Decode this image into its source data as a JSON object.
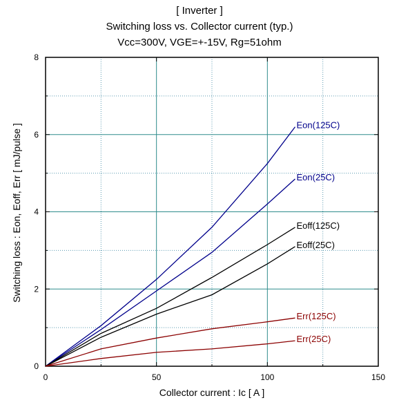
{
  "chart_data": {
    "type": "line",
    "title": "[ Inverter ]",
    "subtitle_lines": [
      "Switching loss  vs.  Collector current  (typ.)",
      "Vcc=300V, VGE=+-15V, Rg=51ohm"
    ],
    "xlabel": "Collector current  :  Ic  [ A ]",
    "ylabel": "Switching loss  :  Eon, Eoff, Err  [ mJ/pulse ]",
    "xlim": [
      0,
      150
    ],
    "ylim": [
      0,
      8
    ],
    "xticks": [
      0,
      50,
      100,
      150
    ],
    "yticks": [
      0,
      2,
      4,
      6,
      8
    ],
    "grid": true,
    "series": [
      {
        "name": "Eon(125C)",
        "color": "#00008b",
        "x": [
          0,
          25,
          50,
          75,
          100,
          112.5
        ],
        "y": [
          0,
          1.05,
          2.25,
          3.6,
          5.25,
          6.2
        ]
      },
      {
        "name": "Eon(25C)",
        "color": "#00008b",
        "x": [
          0,
          25,
          50,
          75,
          100,
          112.5
        ],
        "y": [
          0,
          0.95,
          1.95,
          2.95,
          4.2,
          4.85
        ]
      },
      {
        "name": "Eoff(125C)",
        "color": "#000000",
        "x": [
          0,
          25,
          50,
          75,
          100,
          112.5
        ],
        "y": [
          0,
          0.85,
          1.5,
          2.3,
          3.15,
          3.6
        ]
      },
      {
        "name": "Eoff(25C)",
        "color": "#000000",
        "x": [
          0,
          25,
          50,
          75,
          100,
          112.5
        ],
        "y": [
          0,
          0.75,
          1.35,
          1.85,
          2.65,
          3.1
        ]
      },
      {
        "name": "Err(125C)",
        "color": "#8b0000",
        "x": [
          0,
          25,
          50,
          75,
          100,
          112.5
        ],
        "y": [
          0,
          0.45,
          0.73,
          0.97,
          1.15,
          1.25
        ]
      },
      {
        "name": "Err(25C)",
        "color": "#8b0000",
        "x": [
          0,
          25,
          50,
          75,
          100,
          112.5
        ],
        "y": [
          0,
          0.2,
          0.36,
          0.45,
          0.58,
          0.66
        ]
      }
    ]
  }
}
